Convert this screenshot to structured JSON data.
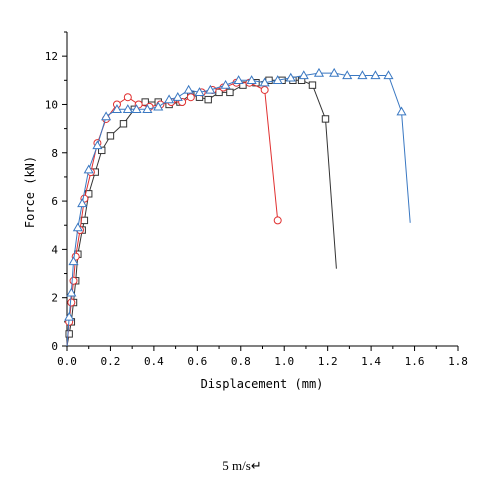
{
  "chart_data": {
    "type": "line",
    "xlabel": "Displacement (mm)",
    "ylabel": "Force (kN)",
    "xlim": [
      0,
      1.8
    ],
    "ylim": [
      0,
      13
    ],
    "xticks": [
      "0.0",
      "0.2",
      "0.4",
      "0.6",
      "0.8",
      "1.0",
      "1.2",
      "1.4",
      "1.6",
      "1.8"
    ],
    "yticks": [
      "0",
      "2",
      "4",
      "6",
      "8",
      "10",
      "12"
    ],
    "grid": false,
    "legend": "none",
    "series": [
      {
        "marker": "square",
        "color": "#333333",
        "points": [
          [
            0.0,
            0.0
          ],
          [
            0.01,
            0.5
          ],
          [
            0.02,
            1.0
          ],
          [
            0.03,
            1.8
          ],
          [
            0.04,
            2.7
          ],
          [
            0.05,
            3.8
          ],
          [
            0.07,
            4.8
          ],
          [
            0.08,
            5.2
          ],
          [
            0.1,
            6.3
          ],
          [
            0.13,
            7.2
          ],
          [
            0.16,
            8.1
          ],
          [
            0.2,
            8.7
          ],
          [
            0.26,
            9.2
          ],
          [
            0.31,
            9.8
          ],
          [
            0.36,
            10.1
          ],
          [
            0.42,
            10.1
          ],
          [
            0.47,
            10.0
          ],
          [
            0.52,
            10.1
          ],
          [
            0.57,
            10.4
          ],
          [
            0.61,
            10.3
          ],
          [
            0.65,
            10.2
          ],
          [
            0.7,
            10.5
          ],
          [
            0.75,
            10.5
          ],
          [
            0.81,
            10.8
          ],
          [
            0.87,
            10.9
          ],
          [
            0.93,
            11.0
          ],
          [
            0.99,
            11.0
          ],
          [
            1.04,
            11.0
          ],
          [
            1.08,
            11.0
          ],
          [
            1.13,
            10.8
          ],
          [
            1.19,
            9.4
          ],
          [
            1.24,
            3.2
          ]
        ]
      },
      {
        "marker": "circle",
        "color": "#e03030",
        "points": [
          [
            0.0,
            0.0
          ],
          [
            0.01,
            1.0
          ],
          [
            0.02,
            1.8
          ],
          [
            0.03,
            2.7
          ],
          [
            0.04,
            3.7
          ],
          [
            0.06,
            4.8
          ],
          [
            0.08,
            6.1
          ],
          [
            0.11,
            7.2
          ],
          [
            0.14,
            8.4
          ],
          [
            0.18,
            9.4
          ],
          [
            0.23,
            10.0
          ],
          [
            0.28,
            10.3
          ],
          [
            0.33,
            10.0
          ],
          [
            0.38,
            9.9
          ],
          [
            0.43,
            10.0
          ],
          [
            0.48,
            10.1
          ],
          [
            0.53,
            10.1
          ],
          [
            0.57,
            10.3
          ],
          [
            0.62,
            10.5
          ],
          [
            0.67,
            10.6
          ],
          [
            0.72,
            10.7
          ],
          [
            0.78,
            10.9
          ],
          [
            0.84,
            10.9
          ],
          [
            0.91,
            10.6
          ],
          [
            0.97,
            5.2
          ]
        ]
      },
      {
        "marker": "triangle",
        "color": "#3a78c2",
        "points": [
          [
            0.0,
            0.0
          ],
          [
            0.01,
            1.2
          ],
          [
            0.02,
            2.2
          ],
          [
            0.03,
            3.5
          ],
          [
            0.05,
            4.9
          ],
          [
            0.07,
            5.9
          ],
          [
            0.1,
            7.3
          ],
          [
            0.14,
            8.3
          ],
          [
            0.18,
            9.5
          ],
          [
            0.23,
            9.8
          ],
          [
            0.28,
            9.8
          ],
          [
            0.32,
            9.8
          ],
          [
            0.37,
            9.8
          ],
          [
            0.42,
            9.9
          ],
          [
            0.47,
            10.2
          ],
          [
            0.51,
            10.3
          ],
          [
            0.56,
            10.6
          ],
          [
            0.61,
            10.5
          ],
          [
            0.66,
            10.6
          ],
          [
            0.73,
            10.8
          ],
          [
            0.79,
            11.0
          ],
          [
            0.85,
            11.0
          ],
          [
            0.91,
            10.9
          ],
          [
            0.97,
            11.0
          ],
          [
            1.03,
            11.1
          ],
          [
            1.09,
            11.2
          ],
          [
            1.16,
            11.3
          ],
          [
            1.23,
            11.3
          ],
          [
            1.29,
            11.2
          ],
          [
            1.36,
            11.2
          ],
          [
            1.42,
            11.2
          ],
          [
            1.48,
            11.2
          ],
          [
            1.54,
            9.7
          ],
          [
            1.58,
            5.1
          ]
        ]
      }
    ]
  },
  "caption": "5 m/s↵"
}
